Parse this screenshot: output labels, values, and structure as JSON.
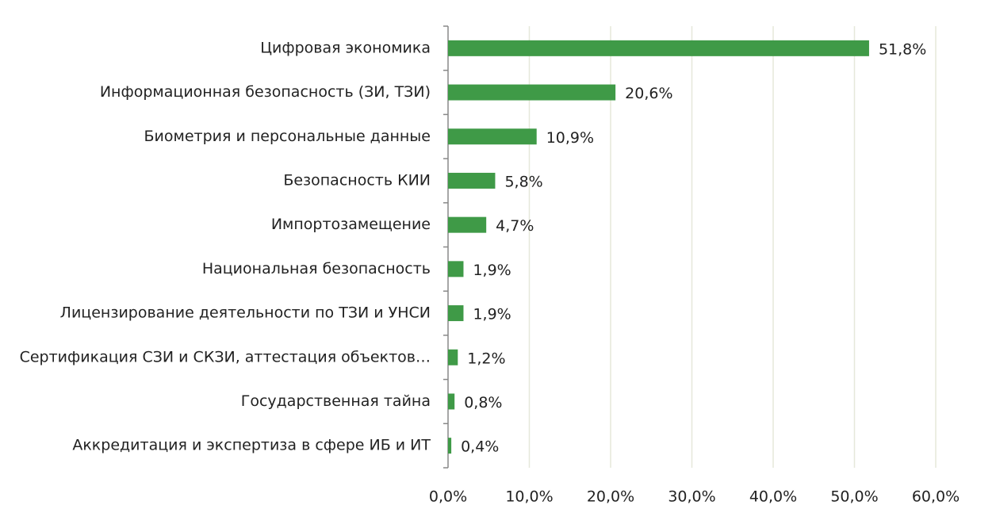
{
  "chart_data": {
    "type": "bar",
    "orientation": "horizontal",
    "categories": [
      "Цифровая экономика",
      "Информационная безопасность (ЗИ, ТЗИ)",
      "Биометрия и персональные данные",
      "Безопасность КИИ",
      "Импортозамещение",
      "Национальная безопасность",
      "Лицензирование деятельности по ТЗИ и УНСИ",
      "Сертификация СЗИ и СКЗИ, аттестация объектов…",
      "Государственная тайна",
      "Аккредитация и экспертиза в сфере ИБ и ИТ"
    ],
    "values": [
      51.8,
      20.6,
      10.9,
      5.8,
      4.7,
      1.9,
      1.9,
      1.2,
      0.8,
      0.4
    ],
    "value_labels": [
      "51,8%",
      "20,6%",
      "10,9%",
      "5,8%",
      "4,7%",
      "1,9%",
      "1,9%",
      "1,2%",
      "0,8%",
      "0,4%"
    ],
    "color": "#3f9a47",
    "xlim": [
      0,
      60
    ],
    "xticks": [
      {
        "value": 0,
        "label": "0,0%"
      },
      {
        "value": 10,
        "label": "10,0%"
      },
      {
        "value": 20,
        "label": "20,0%"
      },
      {
        "value": 30,
        "label": "30,0%"
      },
      {
        "value": 40,
        "label": "40,0%"
      },
      {
        "value": 50,
        "label": "50,0%"
      },
      {
        "value": 60,
        "label": "60,0%"
      }
    ],
    "grid": true
  }
}
